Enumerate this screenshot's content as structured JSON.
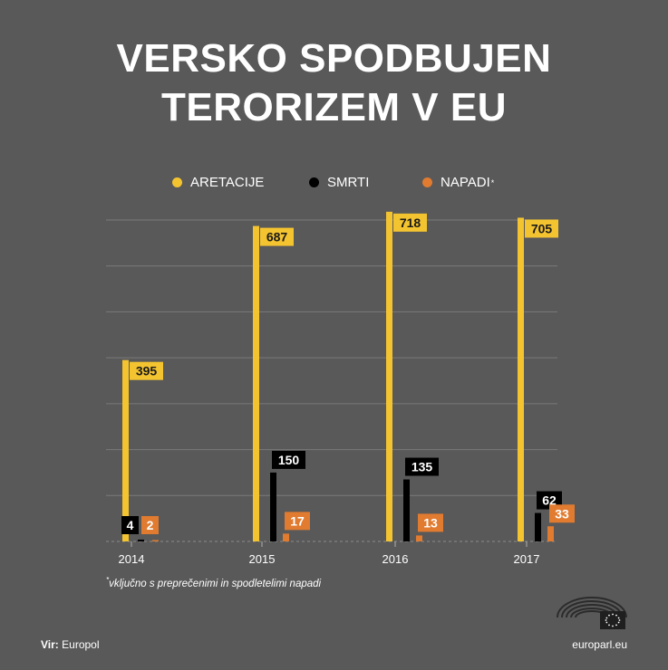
{
  "title_line1": "VERSKO SPODBUJEN",
  "title_line2": "TERORIZEM V EU",
  "legend": [
    {
      "label": "ARETACIJE",
      "color": "#f4c430",
      "sup": ""
    },
    {
      "label": "SMRTI",
      "color": "#000000",
      "sup": ""
    },
    {
      "label": "NAPADI",
      "color": "#e07b30",
      "sup": "*"
    }
  ],
  "footnote": {
    "marker": "*",
    "text": "vključno s preprečenimi in spodletelimi napadi"
  },
  "source": {
    "label": "Vir:",
    "value": "Europol"
  },
  "site": "europarl.eu",
  "chart_data": {
    "type": "bar",
    "title": "VERSKO SPODBUJEN TERORIZEM V EU",
    "categories": [
      "2014",
      "2015",
      "2016",
      "2017"
    ],
    "series": [
      {
        "name": "ARETACIJE",
        "color": "#f4c430",
        "values": [
          395,
          687,
          718,
          705
        ]
      },
      {
        "name": "SMRTI",
        "color": "#000000",
        "values": [
          4,
          150,
          135,
          62
        ]
      },
      {
        "name": "NAPADI*",
        "color": "#e07b30",
        "values": [
          2,
          17,
          13,
          33
        ]
      }
    ],
    "ylim": [
      0,
      700
    ],
    "grid": true,
    "legend_position": "top"
  }
}
